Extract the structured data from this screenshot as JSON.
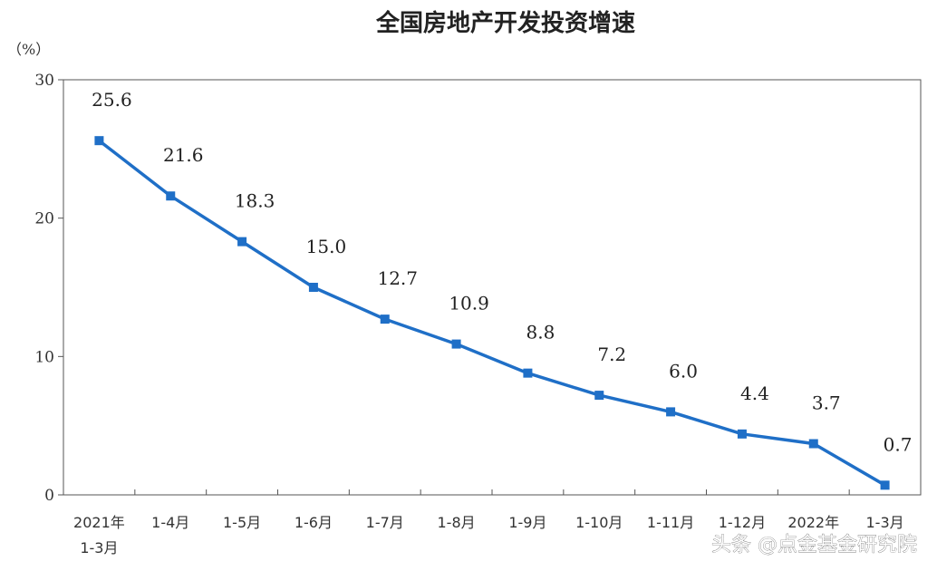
{
  "chart_data": {
    "type": "line",
    "title": "全国房地产开发投资增速",
    "ylabel": "（%）",
    "ylim": [
      0,
      30
    ],
    "yticks": [
      0,
      10,
      20,
      30
    ],
    "categories": [
      [
        "2021年",
        "1-3月"
      ],
      [
        "1-4月"
      ],
      [
        "1-5月"
      ],
      [
        "1-6月"
      ],
      [
        "1-7月"
      ],
      [
        "1-8月"
      ],
      [
        "1-9月"
      ],
      [
        "1-10月"
      ],
      [
        "1-11月"
      ],
      [
        "1-12月"
      ],
      [
        "2022年"
      ],
      [
        "1-3月"
      ]
    ],
    "values": [
      25.6,
      21.6,
      18.3,
      15.0,
      12.7,
      10.9,
      8.8,
      7.2,
      6.0,
      4.4,
      3.7,
      0.7
    ],
    "data_labels": [
      "25.6",
      "21.6",
      "18.3",
      "15.0",
      "12.7",
      "10.9",
      "8.8",
      "7.2",
      "6.0",
      "4.4",
      "3.7",
      "0.7"
    ],
    "legend": "none",
    "grid": false,
    "color": "#1f6fc7"
  },
  "watermark": "头条 @点金基金研究院"
}
